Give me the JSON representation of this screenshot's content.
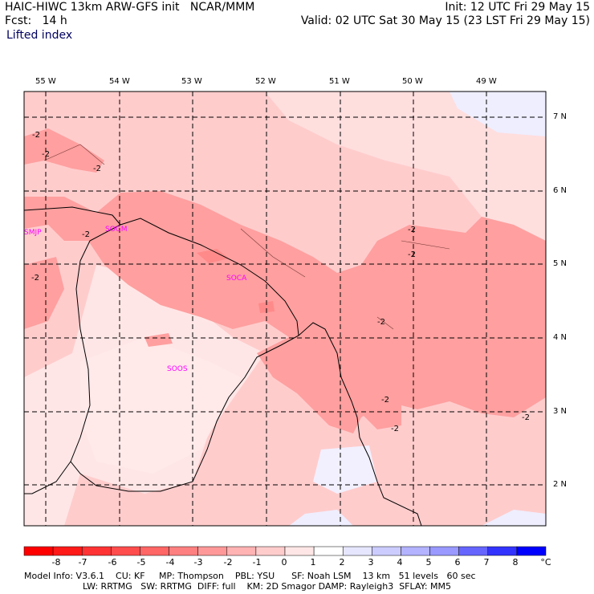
{
  "header": {
    "model": "HAIC-HIWC 13km ARW-GFS init",
    "org": "NCAR/MMM",
    "fcst": "Fcst:   14 h",
    "init": "Init: 12 UTC Fri 29 May 15",
    "valid": "Valid: 02 UTC Sat 30 May 15 (23 LST Fri 29 May 15)",
    "field": "Lifted index"
  },
  "map": {
    "lon_labels": [
      "55 W",
      "54 W",
      "53 W",
      "52 W",
      "51 W",
      "50 W",
      "49 W"
    ],
    "lat_labels": [
      "7 N",
      "6 N",
      "5 N",
      "4 N",
      "3 N",
      "2 N"
    ],
    "stations": [
      "SMJP",
      "SOGM",
      "SOCA",
      "SOOS"
    ],
    "contour_label": "-2",
    "colors": {
      "grid": "#000000",
      "coast": "#000000",
      "station": "#ff00ff"
    }
  },
  "colorbar": {
    "labels": [
      "-8",
      "-7",
      "-6",
      "-5",
      "-4",
      "-3",
      "-2",
      "-1",
      "0",
      "1",
      "2",
      "3",
      "4",
      "5",
      "6",
      "7",
      "8"
    ],
    "unit": "°C",
    "colors": [
      "#ff1a1a",
      "#ff3333",
      "#ff4d4d",
      "#ff6666",
      "#ff8080",
      "#ff9999",
      "#ffb3b3",
      "#ffcccc",
      "#ffe6e6",
      "#ffffff",
      "#e6e6ff",
      "#ccccff",
      "#b3b3ff",
      "#9999ff",
      "#6666ff",
      "#3333ff",
      "#0000ff"
    ]
  },
  "footer": {
    "line1": "Model Info: V3.6.1    CU: KF     MP: Thompson    PBL: YSU      SF: Noah LSM    13 km   51 levels   60 sec",
    "line2": "LW: RRTMG   SW: RRTMG  DIFF: full    KM: 2D Smagor DAMP: Rayleigh3  SFLAY: MM5"
  }
}
